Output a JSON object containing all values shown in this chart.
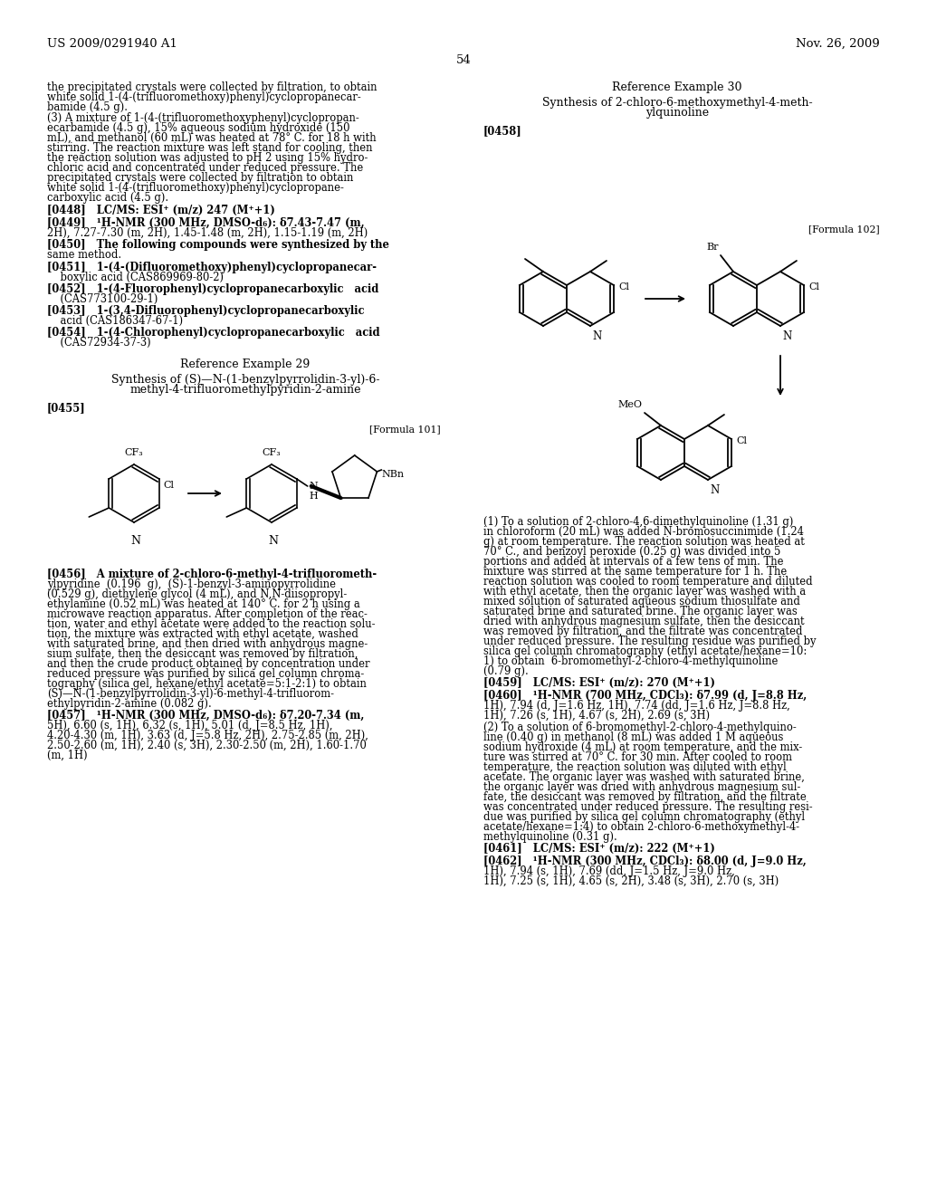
{
  "background_color": "#ffffff",
  "header_left": "US 2009/0291940 A1",
  "header_right": "Nov. 26, 2009",
  "page_number": "54",
  "fig_width": 10.24,
  "fig_height": 13.2,
  "dpi": 100
}
